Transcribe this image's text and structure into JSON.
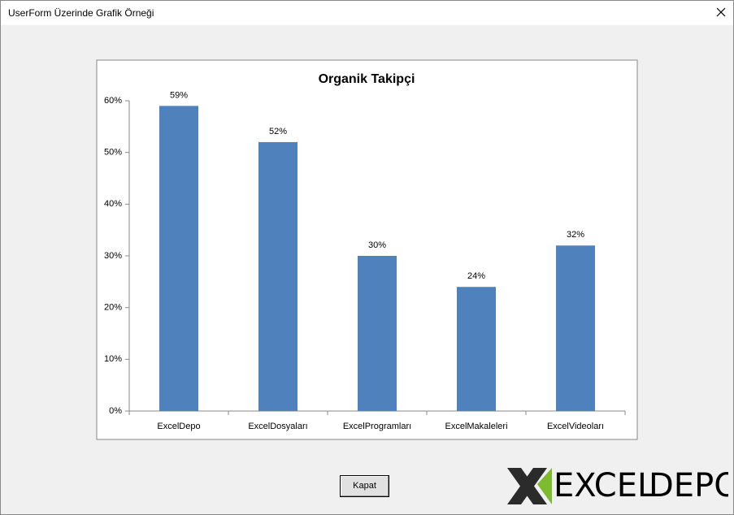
{
  "window": {
    "title": "UserForm Üzerinde Grafik Örneği",
    "button": "Kapat"
  },
  "logo": {
    "part1": "EXCEL",
    "part2": "DEPO"
  },
  "chart_data": {
    "type": "bar",
    "title": "Organik Takipçi",
    "categories": [
      "ExcelDepo",
      "ExcelDosyaları",
      "ExcelProgramları",
      "ExcelMakaleleri",
      "ExcelVideoları"
    ],
    "values": [
      59,
      52,
      30,
      24,
      32
    ],
    "value_labels": [
      "59%",
      "52%",
      "30%",
      "24%",
      "32%"
    ],
    "color": "#4f81bd",
    "ylim": [
      0,
      60
    ],
    "yticks": [
      {
        "value": 0,
        "label": "0%"
      },
      {
        "value": 10,
        "label": "10%"
      },
      {
        "value": 20,
        "label": "20%"
      },
      {
        "value": 30,
        "label": "30%"
      },
      {
        "value": 40,
        "label": "40%"
      },
      {
        "value": 50,
        "label": "50%"
      },
      {
        "value": 60,
        "label": "60%"
      }
    ],
    "grid": false
  }
}
